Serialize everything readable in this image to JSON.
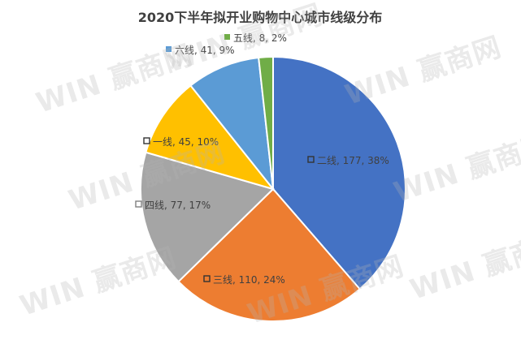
{
  "chart_data": {
    "type": "pie",
    "title": "2020下半年拟开业购物中心城市线级分布",
    "slices": [
      {
        "label": "二线",
        "value": 177,
        "percent": "38%",
        "color": "#4472C4",
        "text": "二线, 177, 38%"
      },
      {
        "label": "三线",
        "value": 110,
        "percent": "24%",
        "color": "#ED7D31",
        "text": "三线, 110, 24%"
      },
      {
        "label": "四线",
        "value": 77,
        "percent": "17%",
        "color": "#A5A5A5",
        "text": "四线, 77, 17%"
      },
      {
        "label": "一线",
        "value": 45,
        "percent": "10%",
        "color": "#FFC000",
        "text": "一线, 45, 10%"
      },
      {
        "label": "六线",
        "value": 41,
        "percent": "9%",
        "color": "#5B9BD5",
        "text": "六线, 41, 9%"
      },
      {
        "label": "五线",
        "value": 8,
        "percent": "2%",
        "color": "#70AD47",
        "text": "五线, 8, 2%"
      }
    ]
  },
  "watermark": {
    "text": "WIN 赢商网"
  }
}
